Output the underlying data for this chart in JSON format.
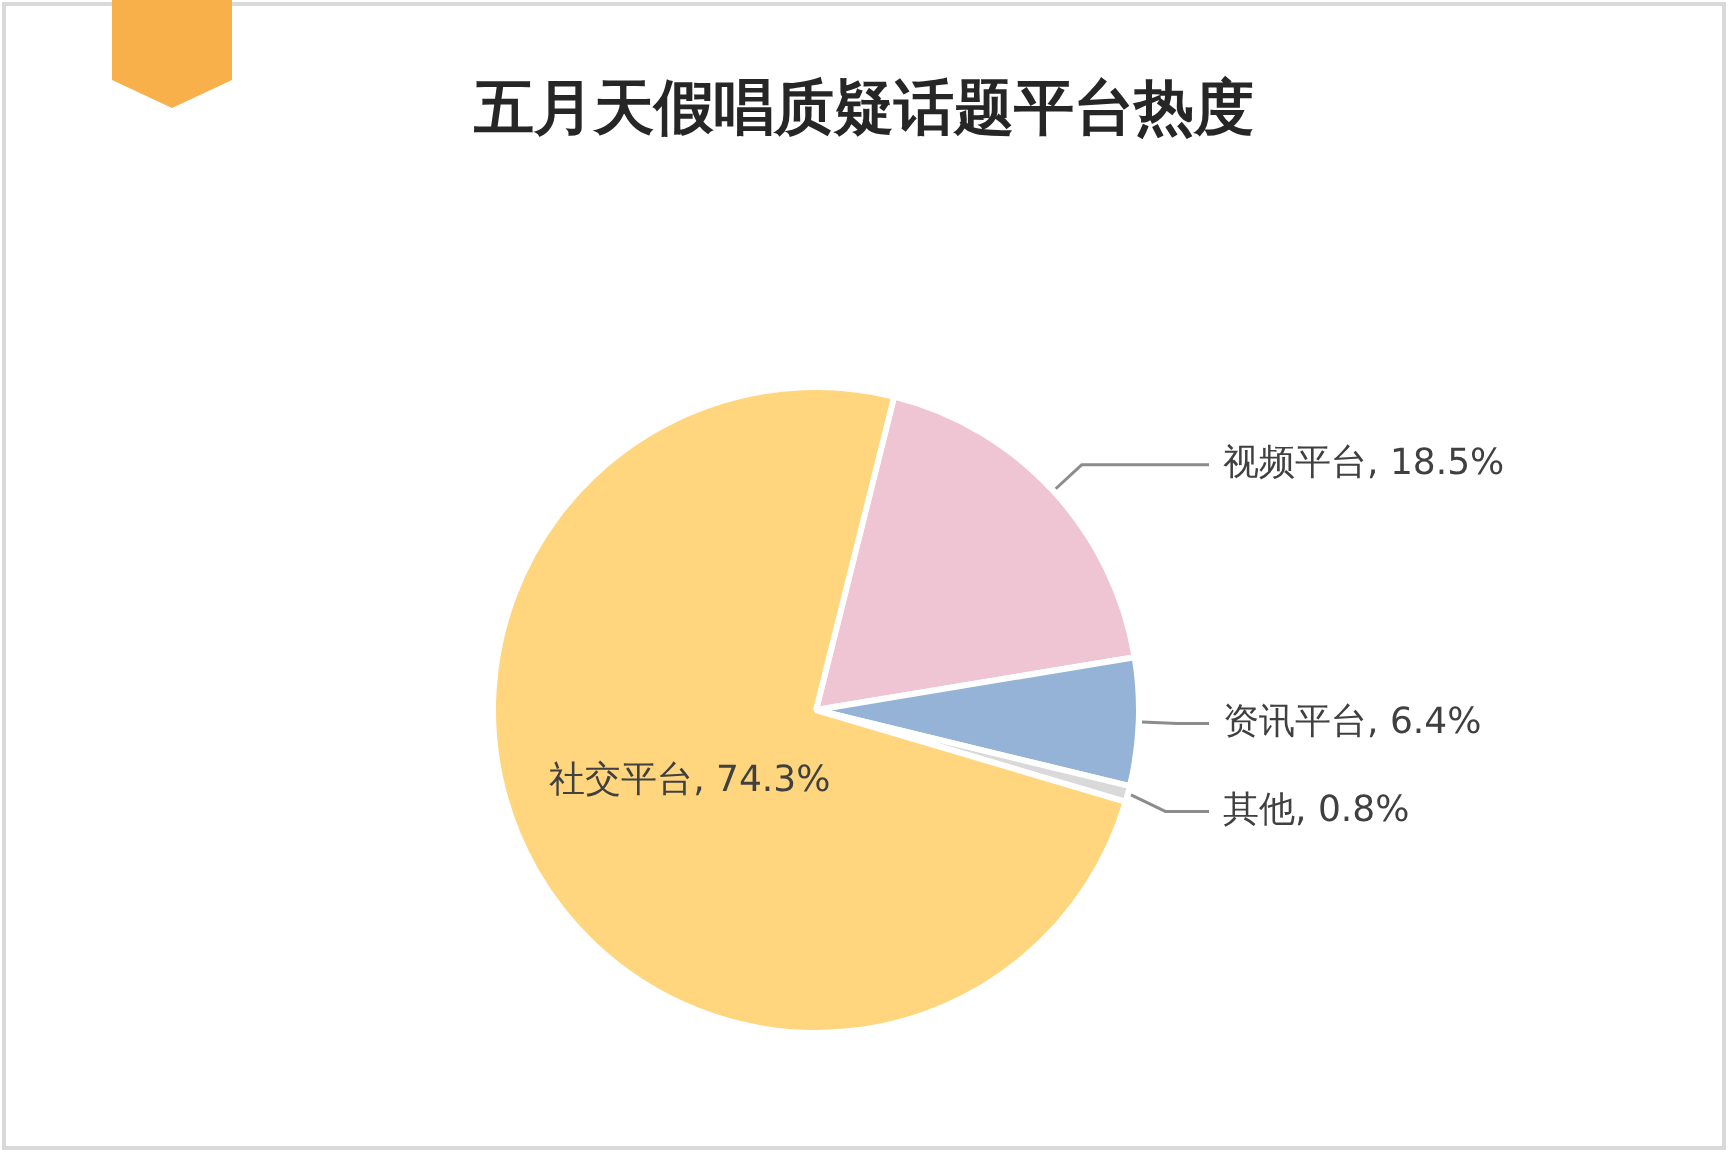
{
  "chart_data": {
    "type": "pie",
    "title": "五月天假唱质疑话题平台热度",
    "categories": [
      "视频平台",
      "资讯平台",
      "其他",
      "社交平台"
    ],
    "values": [
      18.5,
      6.4,
      0.8,
      74.3
    ],
    "value_labels": [
      "18.5%",
      "6.4%",
      "0.8%",
      "74.3%"
    ],
    "colors": [
      "#f0c5d3",
      "#95b3d7",
      "#d9d9d9",
      "#ffd57e"
    ],
    "legend": false
  }
}
